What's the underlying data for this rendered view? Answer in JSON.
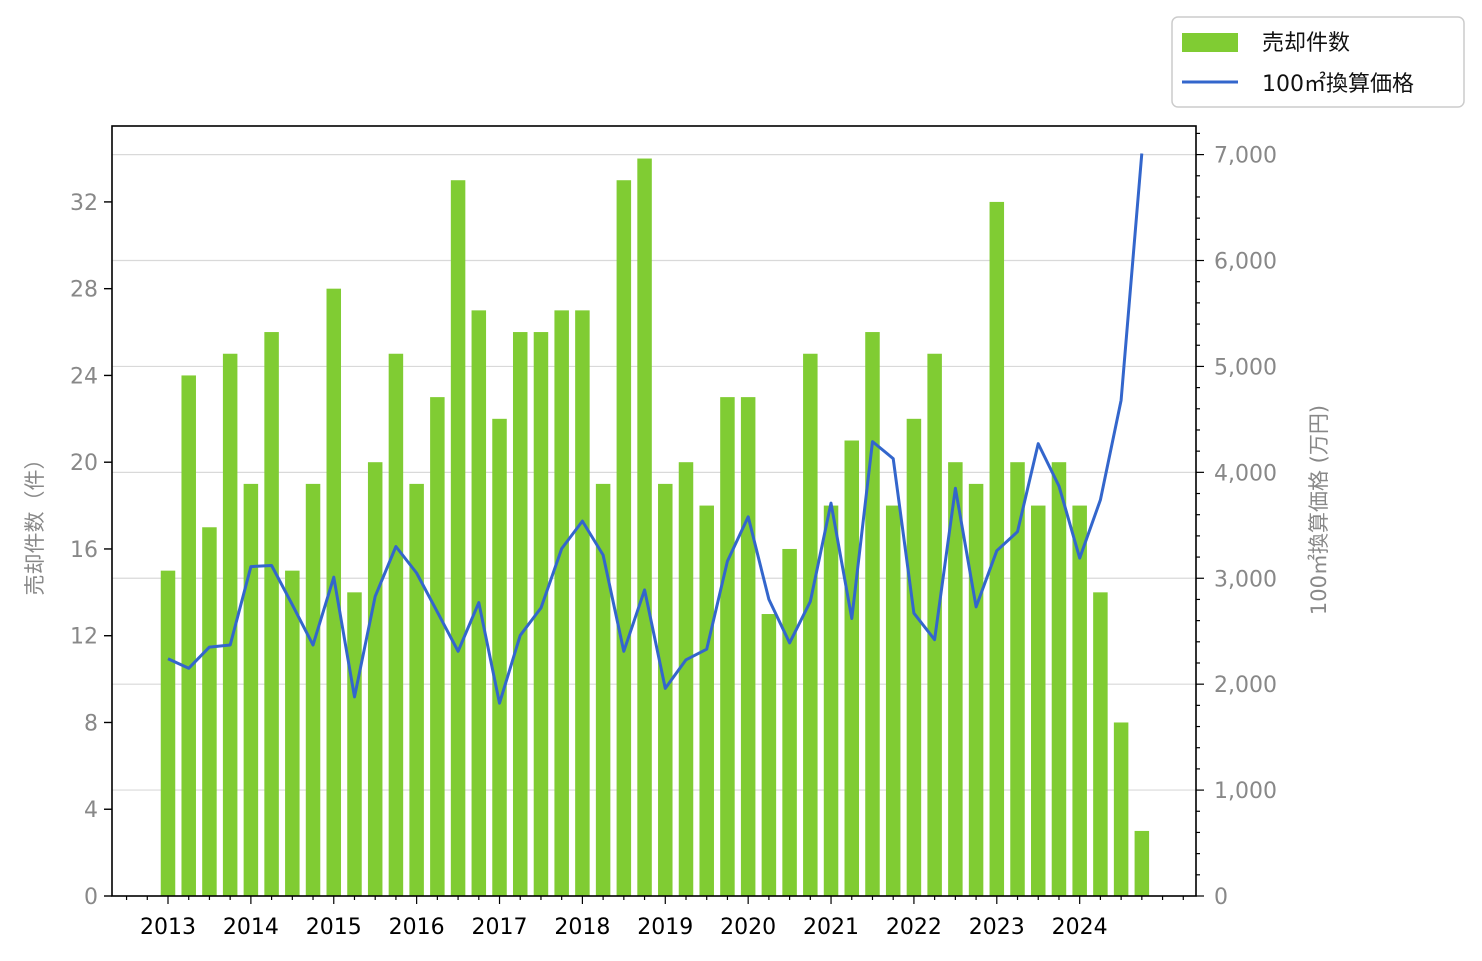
{
  "chart_data": {
    "type": "bar+line",
    "title": "",
    "x_tick_labels": [
      "2013",
      "2014",
      "2015",
      "2016",
      "2017",
      "2018",
      "2019",
      "2020",
      "2021",
      "2022",
      "2023",
      "2024"
    ],
    "periods_per_year": 4,
    "start_year": 2013,
    "y_left": {
      "label": "売却件数（件）",
      "min": 0,
      "max": 35.5,
      "ticks": [
        0,
        4,
        8,
        12,
        16,
        20,
        24,
        28,
        32
      ]
    },
    "y_right": {
      "label": "100㎡換算価格 (万円)",
      "min": 0,
      "max": 7270,
      "ticks": [
        0,
        1000,
        2000,
        3000,
        4000,
        5000,
        6000,
        7000
      ],
      "tick_labels": [
        "0",
        "1,000",
        "2,000",
        "3,000",
        "4,000",
        "5,000",
        "6,000",
        "7,000"
      ]
    },
    "grid": "horizontal, right axis",
    "legend": {
      "position": "top-right, outside plot"
    },
    "series": [
      {
        "name": "売却件数",
        "type": "bar",
        "axis": "left",
        "color": "#80cc33",
        "values": [
          15,
          24,
          17,
          25,
          19,
          26,
          15,
          19,
          28,
          14,
          20,
          25,
          19,
          23,
          33,
          27,
          22,
          26,
          26,
          27,
          27,
          19,
          33,
          34,
          19,
          20,
          18,
          23,
          23,
          13,
          16,
          25,
          18,
          21,
          26,
          18,
          22,
          25,
          20,
          19,
          32,
          20,
          18,
          20,
          18,
          14,
          8,
          3
        ]
      },
      {
        "name": "100㎡換算価格",
        "type": "line",
        "axis": "right",
        "color": "#3366cc",
        "values": [
          2240,
          2150,
          2350,
          2370,
          3110,
          3120,
          2750,
          2370,
          3010,
          1880,
          2830,
          3300,
          3050,
          2680,
          2310,
          2770,
          1820,
          2460,
          2720,
          3280,
          3540,
          3220,
          2310,
          2890,
          1960,
          2230,
          2330,
          3160,
          3580,
          2800,
          2390,
          2780,
          3710,
          2620,
          4290,
          4130,
          2670,
          2420,
          3850,
          2730,
          3260,
          3440,
          4270,
          3870,
          3190,
          3740,
          4680,
          7010
        ]
      }
    ]
  }
}
